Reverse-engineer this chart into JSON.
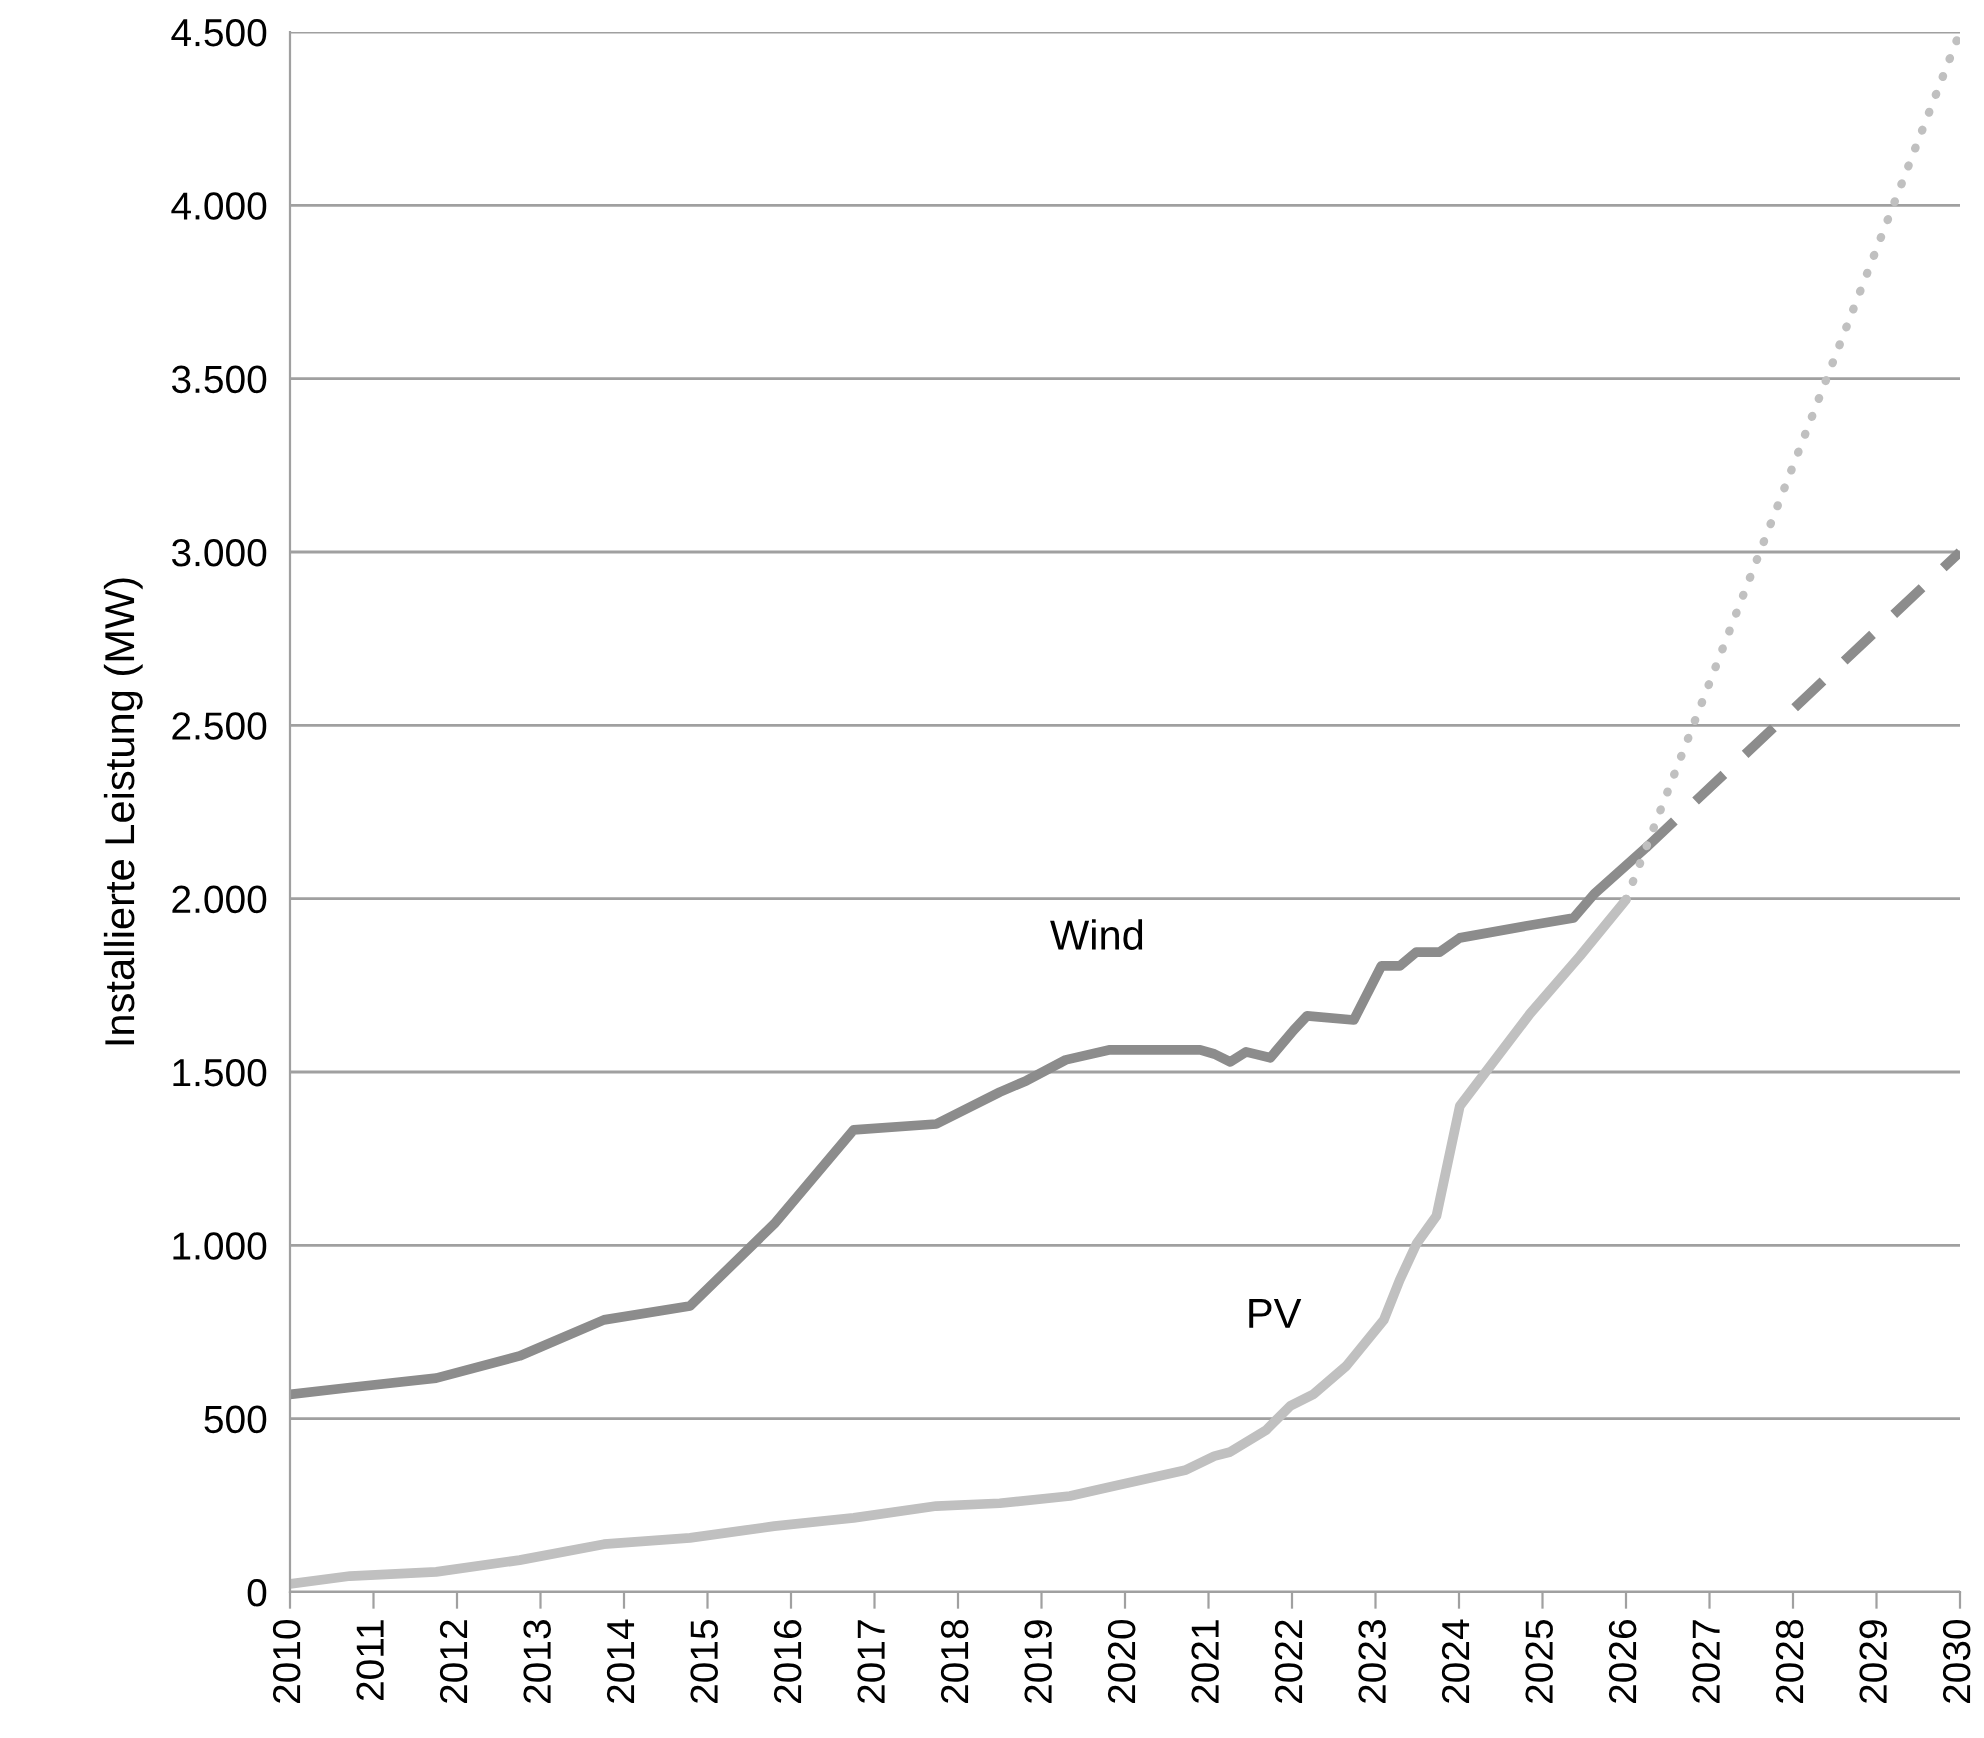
{
  "chart_data": {
    "type": "line",
    "ylabel": "Installierte Leistung (MW)",
    "xlim": [
      2010,
      2030
    ],
    "xticks": [
      2010,
      2011,
      2012,
      2013,
      2014,
      2015,
      2016,
      2017,
      2018,
      2019,
      2020,
      2021,
      2022,
      2023,
      2024,
      2025,
      2026,
      2027,
      2028,
      2029,
      2030
    ],
    "ylim": [
      0,
      4500
    ],
    "yticks": [
      0,
      500,
      {
        "value": 1000,
        "label": "1.000"
      },
      {
        "value": 1500,
        "label": "1.500"
      },
      {
        "value": 2000,
        "label": "2.000"
      },
      {
        "value": 2500,
        "label": "2.500"
      },
      {
        "value": 3000,
        "label": "3.000"
      },
      {
        "value": 3500,
        "label": "3.500"
      },
      {
        "value": 4000,
        "label": "4.000"
      },
      {
        "value": 4500,
        "label": "4.500"
      }
    ],
    "grid": "y",
    "legend": false,
    "marker": "none",
    "line_style": "solid",
    "series": [
      {
        "name": "Wind",
        "color": "#8c8c8c",
        "x": [
          2010,
          2010.72,
          2011.75,
          2012.75,
          2013.76,
          2014.79,
          2015.8,
          2016.75,
          2017.74,
          2018.5,
          2018.82,
          2019.29,
          2019.82,
          2020.9,
          2021.07,
          2021.26,
          2021.45,
          2021.74,
          2022.02,
          2022.18,
          2022.74,
          2023.07,
          2023.29,
          2023.49,
          2023.77,
          2024.01,
          2024.8,
          2025.37,
          2025.62,
          2026.24
        ],
        "values": [
          570,
          590,
          617,
          681,
          785,
          825,
          1062,
          1333,
          1350,
          1442,
          1475,
          1535,
          1564,
          1564,
          1552,
          1529,
          1558,
          1541,
          1621,
          1662,
          1650,
          1806,
          1806,
          1846,
          1846,
          1887,
          1921,
          1944,
          2014,
          2147
        ]
      },
      {
        "name": "PV",
        "color": "#c0c0c0",
        "x": [
          2010,
          2010.72,
          2011.75,
          2012.75,
          2013.76,
          2014.79,
          2015.8,
          2016.75,
          2017.74,
          2018.5,
          2019.34,
          2019.87,
          2020.73,
          2021.07,
          2021.26,
          2021.69,
          2021.98,
          2022.26,
          2022.65,
          2023.1,
          2023.29,
          2023.49,
          2023.73,
          2024.01,
          2024.85,
          2025.45,
          2026.0
        ],
        "values": [
          23,
          46,
          58,
          92,
          138,
          156,
          190,
          214,
          248,
          256,
          277,
          306,
          352,
          392,
          404,
          467,
          537,
          571,
          652,
          785,
          900,
          1004,
          1085,
          1402,
          1668,
          1835,
          1997
        ]
      },
      {
        "color": "#8c8c8c",
        "line_style": "dashed",
        "x": [
          2026.24,
          2030
        ],
        "values": [
          2147,
          3000
        ]
      },
      {
        "color": "#c0c0c0",
        "line_style": "dotted",
        "x": [
          2026.0,
          2030
        ],
        "values": [
          1997,
          4500
        ]
      }
    ]
  }
}
